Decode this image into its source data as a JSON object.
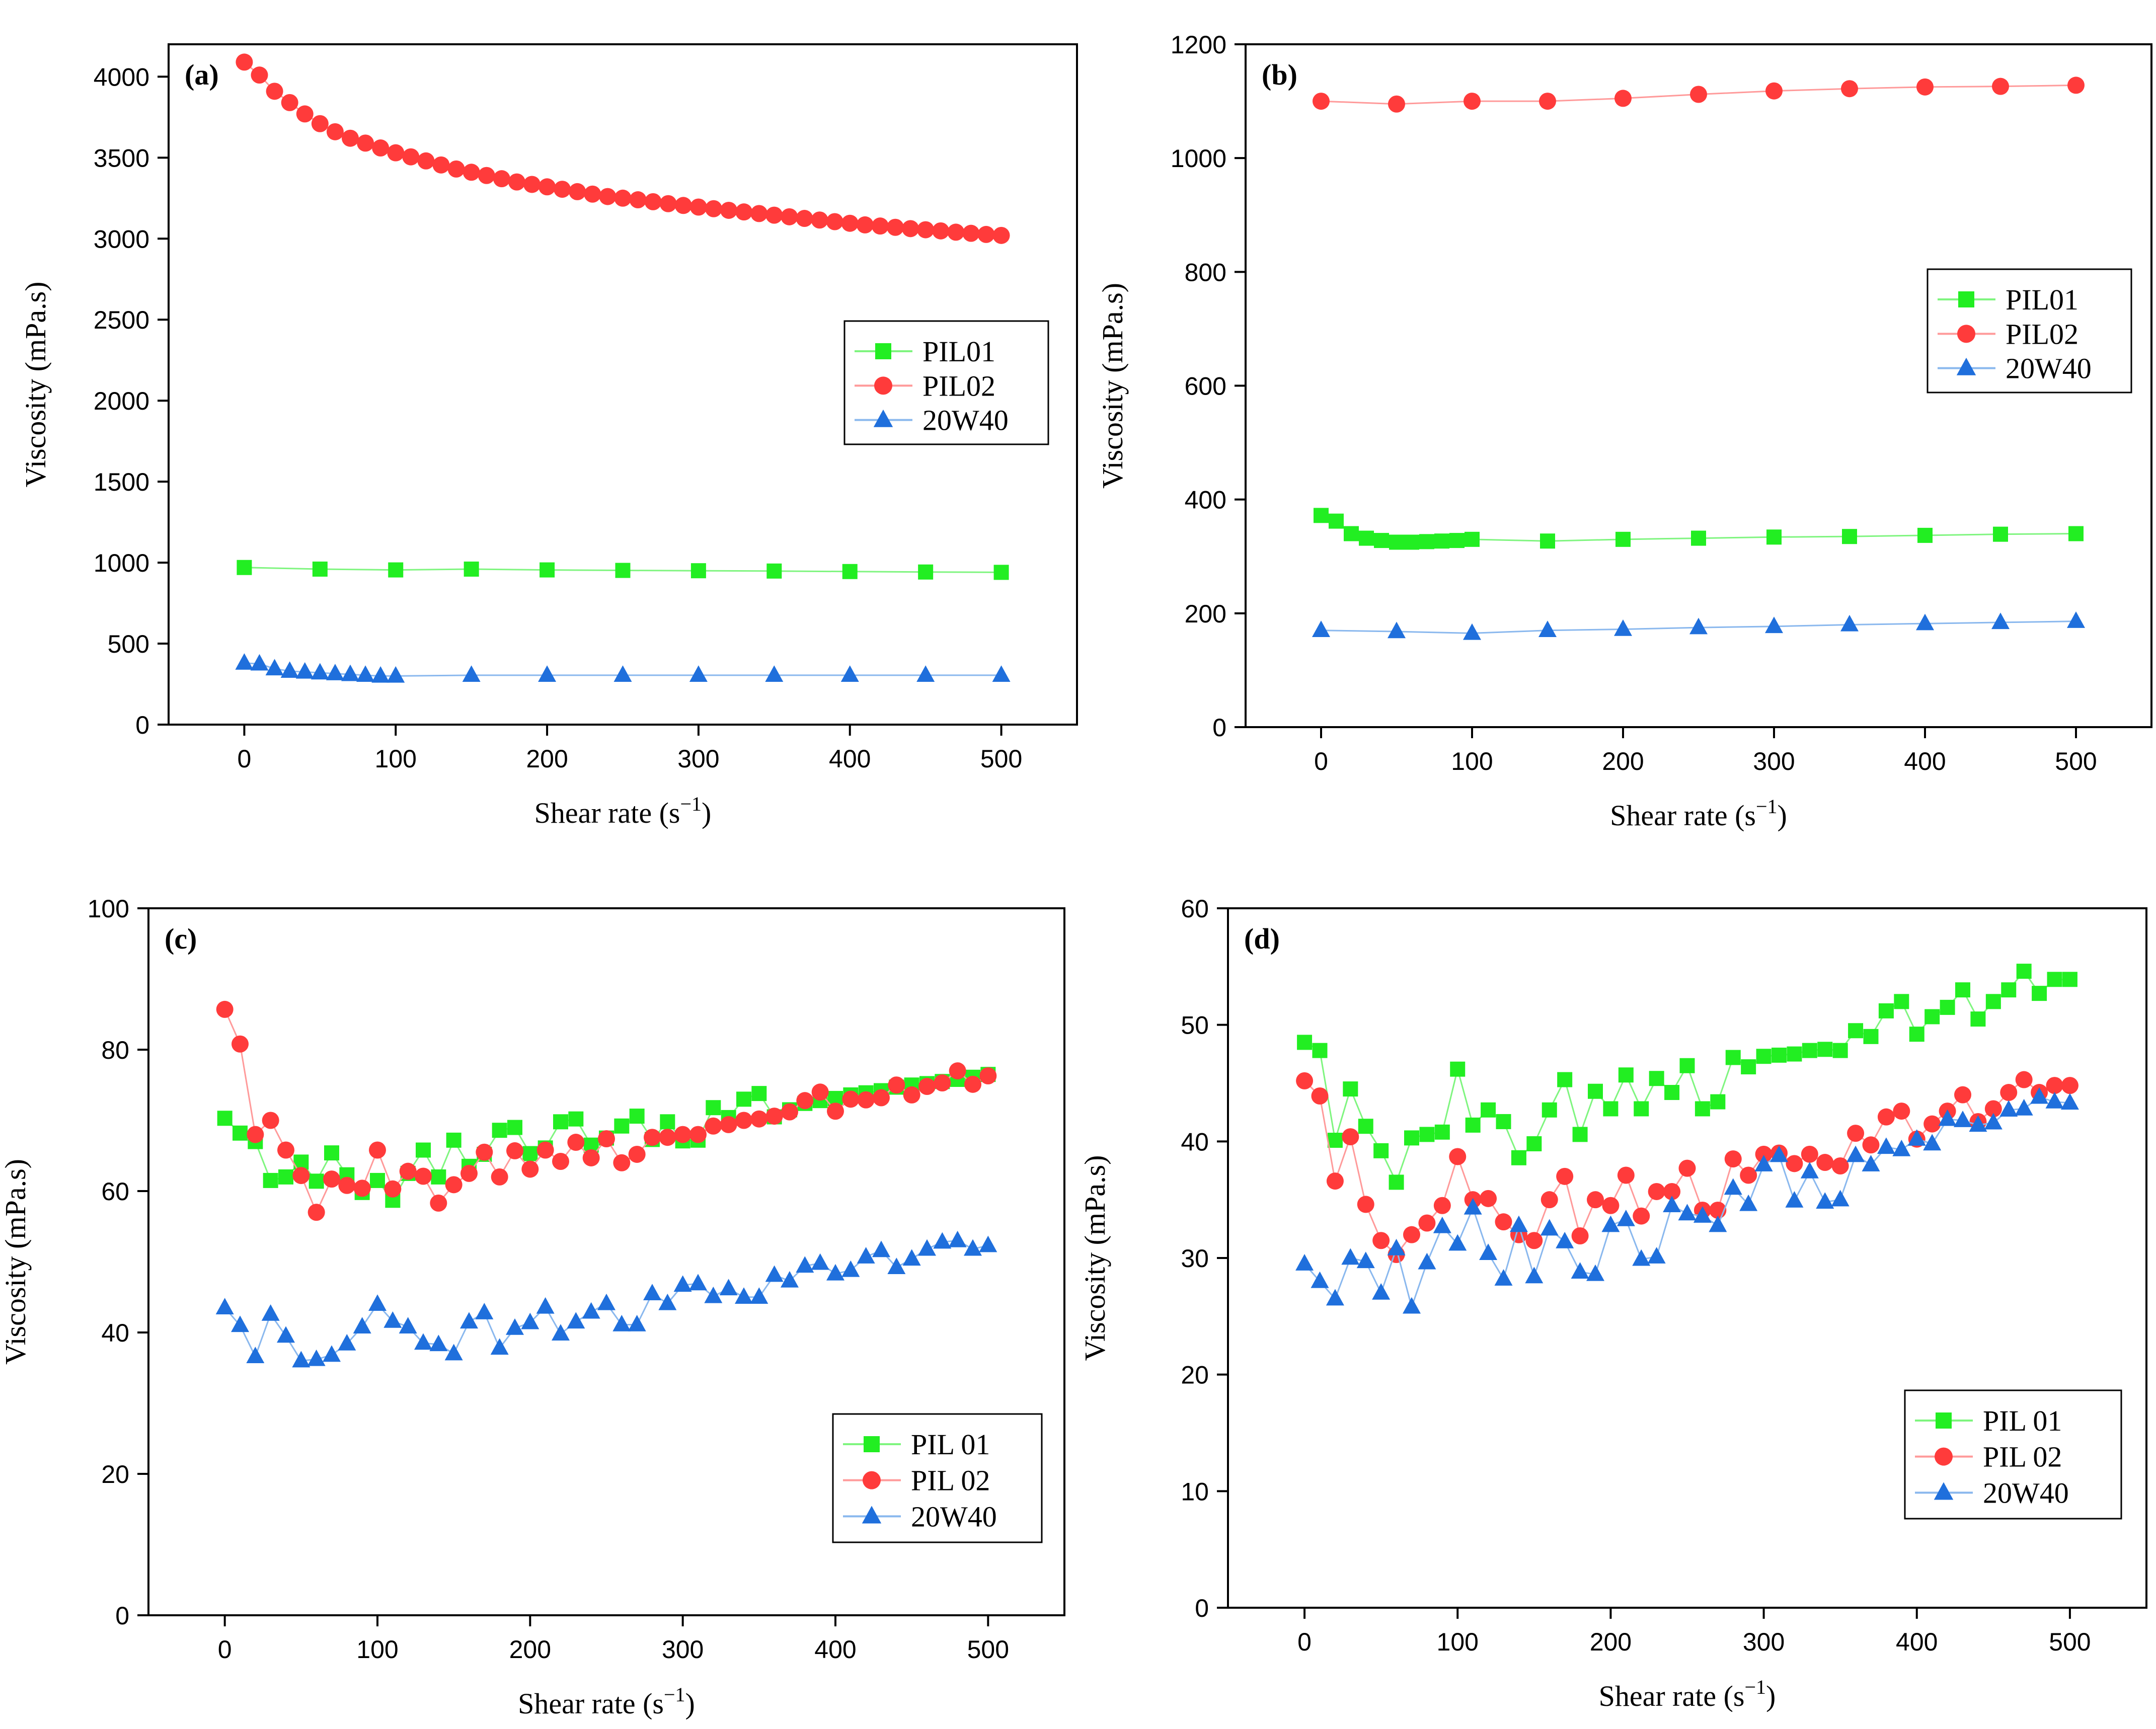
{
  "colors": {
    "PIL01": "#22ee22",
    "PIL02": "#ff3b3b",
    "20W40": "#1f6fdc",
    "line_PIL01": "#7ff57f",
    "line_PIL02": "#ff9a9a",
    "line_20W40": "#8ab8ee"
  },
  "chart_data": [
    {
      "type": "line",
      "panel_label": "(a)",
      "xlabel": "Shear rate (s",
      "xlabel_sup": "−1",
      "xlabel_tail": ")",
      "ylabel": "Viscosity (mPa.s)",
      "xlim": [
        -50,
        550
      ],
      "ylim": [
        0,
        4200
      ],
      "xticks": [
        0,
        100,
        200,
        300,
        400,
        500
      ],
      "yticks": [
        0,
        500,
        1000,
        1500,
        2000,
        2500,
        3000,
        3500,
        4000
      ],
      "legend_position": "center-right",
      "series": [
        {
          "name": "PIL01",
          "marker": "square",
          "color_key": "PIL01",
          "x": [
            0,
            50,
            100,
            150,
            200,
            250,
            300,
            350,
            400,
            450,
            500
          ],
          "y": [
            970,
            960,
            955,
            960,
            955,
            952,
            950,
            948,
            945,
            942,
            940
          ]
        },
        {
          "name": "PIL02",
          "marker": "circle",
          "color_key": "PIL02",
          "x": [
            0,
            10,
            20,
            30,
            40,
            50,
            60,
            70,
            80,
            90,
            100,
            110,
            120,
            130,
            140,
            150,
            160,
            170,
            180,
            190,
            200,
            210,
            220,
            230,
            240,
            250,
            260,
            270,
            280,
            290,
            300,
            310,
            320,
            330,
            340,
            350,
            360,
            370,
            380,
            390,
            400,
            410,
            420,
            430,
            440,
            450,
            460,
            470,
            480,
            490,
            500
          ],
          "y": [
            4090,
            4010,
            3910,
            3840,
            3770,
            3710,
            3660,
            3620,
            3590,
            3560,
            3530,
            3505,
            3480,
            3455,
            3430,
            3410,
            3390,
            3370,
            3350,
            3335,
            3320,
            3305,
            3290,
            3275,
            3260,
            3250,
            3240,
            3228,
            3216,
            3205,
            3195,
            3185,
            3175,
            3165,
            3155,
            3145,
            3135,
            3125,
            3115,
            3105,
            3095,
            3085,
            3078,
            3070,
            3062,
            3055,
            3048,
            3040,
            3033,
            3026,
            3020
          ]
        },
        {
          "name": "20W40",
          "marker": "triangle",
          "color_key": "20W40",
          "x": [
            0,
            10,
            20,
            30,
            40,
            50,
            60,
            70,
            80,
            90,
            100,
            150,
            200,
            250,
            300,
            350,
            400,
            450,
            500
          ],
          "y": [
            380,
            375,
            345,
            330,
            325,
            320,
            315,
            310,
            305,
            300,
            300,
            305,
            305,
            305,
            305,
            305,
            305,
            305,
            305
          ]
        }
      ]
    },
    {
      "type": "line",
      "panel_label": "(b)",
      "xlabel": "Shear rate (s",
      "xlabel_sup": "−1",
      "xlabel_tail": ")",
      "ylabel": "Viscosity (mPa.s)",
      "xlim": [
        -50,
        550
      ],
      "ylim": [
        0,
        1200
      ],
      "xticks": [
        0,
        100,
        200,
        300,
        400,
        500
      ],
      "yticks": [
        0,
        200,
        400,
        600,
        800,
        1000,
        1200
      ],
      "legend_position": "center-right",
      "series": [
        {
          "name": "PIL01",
          "marker": "square",
          "color_key": "PIL01",
          "x": [
            0,
            10,
            20,
            30,
            40,
            50,
            60,
            70,
            80,
            90,
            100,
            150,
            200,
            250,
            300,
            350,
            400,
            450,
            500
          ],
          "y": [
            372,
            362,
            340,
            332,
            328,
            325,
            325,
            326,
            327,
            328,
            330,
            327,
            330,
            332,
            334,
            335,
            337,
            339,
            340
          ]
        },
        {
          "name": "PIL02",
          "marker": "circle",
          "color_key": "PIL02",
          "x": [
            0,
            50,
            100,
            150,
            200,
            250,
            300,
            350,
            400,
            450,
            500
          ],
          "y": [
            1100,
            1095,
            1100,
            1100,
            1105,
            1112,
            1118,
            1122,
            1125,
            1126,
            1128
          ]
        },
        {
          "name": "20W40",
          "marker": "triangle",
          "color_key": "20W40",
          "x": [
            0,
            50,
            100,
            150,
            200,
            250,
            300,
            350,
            400,
            450,
            500
          ],
          "y": [
            170,
            168,
            165,
            170,
            172,
            175,
            177,
            180,
            182,
            184,
            186
          ]
        }
      ]
    },
    {
      "type": "line",
      "panel_label": "(c)",
      "xlabel": "Shear rate (s",
      "xlabel_sup": "−1",
      "xlabel_tail": ")",
      "ylabel": "Viscosity (mPa.s)",
      "xlim": [
        -50,
        550
      ],
      "ylim": [
        0,
        100
      ],
      "xticks": [
        0,
        100,
        200,
        300,
        400,
        500
      ],
      "yticks": [
        0,
        20,
        40,
        60,
        80,
        100
      ],
      "legend_position": "bottom-right",
      "series": [
        {
          "name": "PIL 01",
          "marker": "square",
          "color_key": "PIL01",
          "x": [
            0,
            10,
            20,
            30,
            40,
            50,
            60,
            70,
            80,
            90,
            100,
            110,
            120,
            130,
            140,
            150,
            160,
            170,
            180,
            190,
            200,
            210,
            220,
            230,
            240,
            250,
            260,
            270,
            280,
            290,
            300,
            310,
            320,
            330,
            340,
            350,
            360,
            370,
            380,
            390,
            400,
            410,
            420,
            430,
            440,
            450,
            460,
            470,
            480,
            490,
            500
          ],
          "y": [
            70.3,
            68.2,
            67,
            61.5,
            62,
            64.1,
            61.4,
            65.4,
            62.3,
            59.8,
            61.5,
            58.7,
            62.5,
            65.8,
            62,
            67.2,
            63.5,
            65.2,
            68.6,
            69,
            65.3,
            66.1,
            69.8,
            70.2,
            66.5,
            67.5,
            69.2,
            70.6,
            67.3,
            69.8,
            67.1,
            67.2,
            71.8,
            70.4,
            73,
            73.8,
            70.5,
            71.5,
            72.4,
            72.8,
            73.1,
            73.6,
            73.9,
            74.2,
            74.7,
            75,
            75.2,
            75.5,
            75.8,
            76.1,
            76.5
          ]
        },
        {
          "name": "PIL 02",
          "marker": "circle",
          "color_key": "PIL02",
          "x": [
            0,
            10,
            20,
            30,
            40,
            50,
            60,
            70,
            80,
            90,
            100,
            110,
            120,
            130,
            140,
            150,
            160,
            170,
            180,
            190,
            200,
            210,
            220,
            230,
            240,
            250,
            260,
            270,
            280,
            290,
            300,
            310,
            320,
            330,
            340,
            350,
            360,
            370,
            380,
            390,
            400,
            410,
            420,
            430,
            440,
            450,
            460,
            470,
            480,
            490,
            500
          ],
          "y": [
            85.7,
            80.8,
            68,
            70,
            65.8,
            62.2,
            57,
            61.7,
            60.8,
            60.4,
            65.8,
            60.3,
            62.8,
            62.1,
            58.3,
            60.9,
            62.5,
            65.5,
            62,
            65.7,
            63.1,
            65.8,
            64.2,
            66.9,
            64.7,
            67.4,
            64,
            65.2,
            67.6,
            67.6,
            68,
            68,
            69.2,
            69.4,
            70,
            70.2,
            70.6,
            71.2,
            72.8,
            74,
            71.3,
            73,
            72.9,
            73.2,
            75,
            73.6,
            74.8,
            75.3,
            77,
            75.1,
            76.3
          ]
        },
        {
          "name": "20W40",
          "marker": "triangle",
          "color_key": "20W40",
          "x": [
            0,
            10,
            20,
            30,
            40,
            50,
            60,
            70,
            80,
            90,
            100,
            110,
            120,
            130,
            140,
            150,
            160,
            170,
            180,
            190,
            200,
            210,
            220,
            230,
            240,
            250,
            260,
            270,
            280,
            290,
            300,
            310,
            320,
            330,
            340,
            350,
            360,
            370,
            380,
            390,
            400,
            410,
            420,
            430,
            440,
            450,
            460,
            470,
            480,
            490,
            500
          ],
          "y": [
            43.5,
            41,
            36.6,
            42.6,
            39.5,
            36,
            36.2,
            36.8,
            38.4,
            40.8,
            44,
            41.6,
            40.8,
            38.5,
            38.3,
            37,
            41.5,
            42.8,
            37.8,
            40.6,
            41.4,
            43.6,
            39.8,
            41.5,
            42.9,
            44.1,
            41.1,
            41.1,
            45.5,
            44.1,
            46.7,
            46.9,
            45.1,
            46.2,
            45,
            45,
            48.1,
            47.3,
            49.4,
            49.8,
            48.3,
            48.8,
            50.7,
            51.6,
            49.2,
            50.4,
            51.8,
            52.8,
            53,
            51.8,
            52.3
          ]
        }
      ]
    },
    {
      "type": "line",
      "panel_label": "(d)",
      "xlabel": "Shear rate (s",
      "xlabel_sup": "−1",
      "xlabel_tail": ")",
      "ylabel": "Viscosity (mPa.s)",
      "xlim": [
        -50,
        550
      ],
      "ylim": [
        0,
        60
      ],
      "xticks": [
        0,
        100,
        200,
        300,
        400,
        500
      ],
      "yticks": [
        0,
        10,
        20,
        30,
        40,
        50,
        60
      ],
      "legend_position": "bottom-right",
      "series": [
        {
          "name": "PIL 01",
          "marker": "square",
          "color_key": "PIL01",
          "x": [
            0,
            10,
            20,
            30,
            40,
            50,
            60,
            70,
            80,
            90,
            100,
            110,
            120,
            130,
            140,
            150,
            160,
            170,
            180,
            190,
            200,
            210,
            220,
            230,
            240,
            250,
            260,
            270,
            280,
            290,
            300,
            310,
            320,
            330,
            340,
            350,
            360,
            370,
            380,
            390,
            400,
            410,
            420,
            430,
            440,
            450,
            460,
            470,
            480,
            490,
            500
          ],
          "y": [
            48.5,
            47.8,
            40.1,
            44.5,
            41.3,
            39.2,
            36.5,
            40.3,
            40.6,
            40.8,
            46.2,
            41.4,
            42.7,
            41.7,
            38.6,
            39.8,
            42.7,
            45.3,
            40.6,
            44.3,
            42.8,
            45.7,
            42.8,
            45.4,
            44.2,
            46.5,
            42.8,
            43.4,
            47.2,
            46.4,
            47.3,
            47.4,
            47.5,
            47.8,
            47.9,
            47.8,
            49.5,
            49,
            51.2,
            52,
            49.2,
            50.7,
            51.5,
            53,
            50.5,
            52,
            53,
            54.6,
            52.7,
            53.9,
            53.9
          ]
        },
        {
          "name": "PIL 02",
          "marker": "circle",
          "color_key": "PIL02",
          "x": [
            0,
            10,
            20,
            30,
            40,
            50,
            60,
            70,
            80,
            90,
            100,
            110,
            120,
            130,
            140,
            150,
            160,
            170,
            180,
            190,
            200,
            210,
            220,
            230,
            240,
            250,
            260,
            270,
            280,
            290,
            300,
            310,
            320,
            330,
            340,
            350,
            360,
            370,
            380,
            390,
            400,
            410,
            420,
            430,
            440,
            450,
            460,
            470,
            480,
            490,
            500
          ],
          "y": [
            45.2,
            43.9,
            36.6,
            40.4,
            34.6,
            31.5,
            30.3,
            32,
            33,
            34.5,
            38.7,
            35,
            35.1,
            33.1,
            32,
            31.5,
            35,
            37,
            31.9,
            35,
            34.5,
            37.1,
            33.6,
            35.7,
            35.7,
            37.7,
            34.1,
            34.1,
            38.5,
            37.1,
            38.9,
            39,
            38.1,
            38.9,
            38.2,
            37.9,
            40.7,
            39.7,
            42.1,
            42.6,
            40.2,
            41.5,
            42.6,
            44,
            41.7,
            42.8,
            44.2,
            45.3,
            44.2,
            44.8,
            44.8
          ]
        },
        {
          "name": "20W40",
          "marker": "triangle",
          "color_key": "20W40",
          "x": [
            0,
            10,
            20,
            30,
            40,
            50,
            60,
            70,
            80,
            90,
            100,
            110,
            120,
            130,
            140,
            150,
            160,
            170,
            180,
            190,
            200,
            210,
            220,
            230,
            240,
            250,
            260,
            270,
            280,
            290,
            300,
            310,
            320,
            330,
            340,
            350,
            360,
            370,
            380,
            390,
            400,
            410,
            420,
            430,
            440,
            450,
            460,
            470,
            480,
            490,
            500
          ],
          "y": [
            29.5,
            28,
            26.5,
            30,
            29.7,
            27,
            30.8,
            25.8,
            29.6,
            32.7,
            31.2,
            34.3,
            30.4,
            28.2,
            32.8,
            28.4,
            32.5,
            31.4,
            28.8,
            28.6,
            32.8,
            33.3,
            29.9,
            30.1,
            34.5,
            33.8,
            33.6,
            32.8,
            36,
            34.6,
            38,
            38.8,
            34.9,
            37.4,
            34.8,
            35,
            38.8,
            38,
            39.5,
            39.3,
            40.2,
            39.8,
            41.9,
            41.8,
            41.4,
            41.6,
            42.7,
            42.8,
            43.8,
            43.4,
            43.3
          ]
        }
      ]
    }
  ]
}
